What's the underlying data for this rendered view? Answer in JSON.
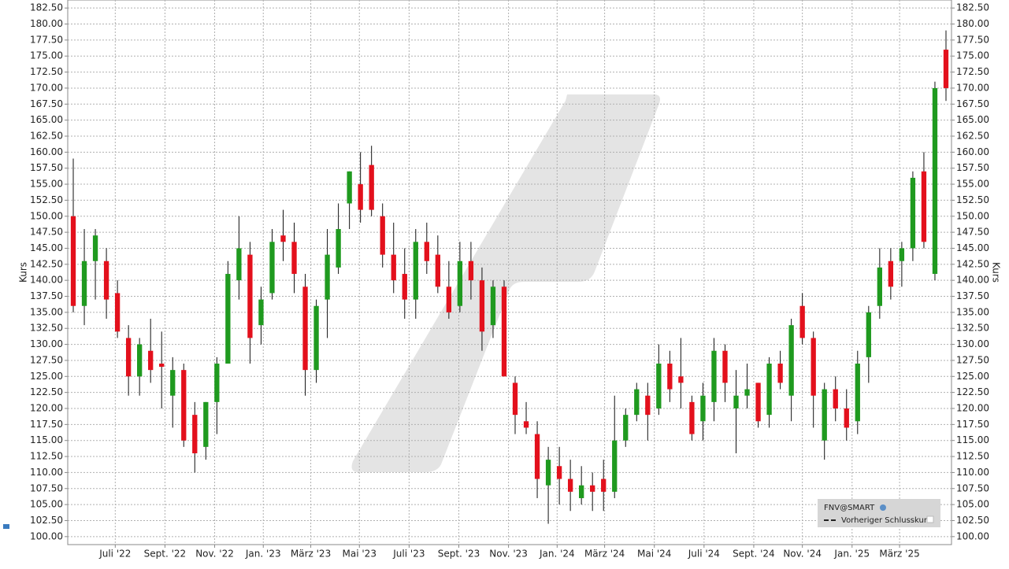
{
  "chart_data": {
    "type": "candlestick",
    "y_label": "Kurs",
    "legend": {
      "title": "FNV@SMART",
      "entry": "Vorheriger Schlusskurs"
    },
    "up_color": "#1f9a1f",
    "down_color": "#e3101c",
    "grid": true,
    "xlim": [
      -0.5,
      79.5
    ],
    "xticks": [
      {
        "value": 3.8,
        "label": "Juli '22"
      },
      {
        "value": 8.3,
        "label": "Sept. '22"
      },
      {
        "value": 12.8,
        "label": "Nov. '22"
      },
      {
        "value": 17.2,
        "label": "Jan. '23"
      },
      {
        "value": 21.5,
        "label": "März '23"
      },
      {
        "value": 25.9,
        "label": "Mai '23"
      },
      {
        "value": 30.4,
        "label": "Juli '23"
      },
      {
        "value": 34.9,
        "label": "Sept. '23"
      },
      {
        "value": 39.4,
        "label": "Nov. '23"
      },
      {
        "value": 43.8,
        "label": "Jan. '24"
      },
      {
        "value": 48.1,
        "label": "März '24"
      },
      {
        "value": 52.6,
        "label": "Mai '24"
      },
      {
        "value": 57.1,
        "label": "Juli '24"
      },
      {
        "value": 61.6,
        "label": "Sept. '24"
      },
      {
        "value": 66.0,
        "label": "Nov. '24"
      },
      {
        "value": 70.5,
        "label": "Jan. '25"
      },
      {
        "value": 74.8,
        "label": "März '25"
      }
    ],
    "ylim": [
      98.75,
      183.75
    ],
    "yticks": [
      {
        "value": 100,
        "label": "100.00"
      },
      {
        "value": 102.5,
        "label": "102.50"
      },
      {
        "value": 105,
        "label": "105.00"
      },
      {
        "value": 107.5,
        "label": "107.50"
      },
      {
        "value": 110,
        "label": "110.00"
      },
      {
        "value": 112.5,
        "label": "112.50"
      },
      {
        "value": 115,
        "label": "115.00"
      },
      {
        "value": 117.5,
        "label": "117.50"
      },
      {
        "value": 120,
        "label": "120.00"
      },
      {
        "value": 122.5,
        "label": "122.50"
      },
      {
        "value": 125,
        "label": "125.00"
      },
      {
        "value": 127.5,
        "label": "127.50"
      },
      {
        "value": 130,
        "label": "130.00"
      },
      {
        "value": 132.5,
        "label": "132.50"
      },
      {
        "value": 135,
        "label": "135.00"
      },
      {
        "value": 137.5,
        "label": "137.50"
      },
      {
        "value": 140,
        "label": "140.00"
      },
      {
        "value": 142.5,
        "label": "142.50"
      },
      {
        "value": 145,
        "label": "145.00"
      },
      {
        "value": 147.5,
        "label": "147.50"
      },
      {
        "value": 150,
        "label": "150.00"
      },
      {
        "value": 152.5,
        "label": "152.50"
      },
      {
        "value": 155,
        "label": "155.00"
      },
      {
        "value": 157.5,
        "label": "157.50"
      },
      {
        "value": 160,
        "label": "160.00"
      },
      {
        "value": 162.5,
        "label": "162.50"
      },
      {
        "value": 165,
        "label": "165.00"
      },
      {
        "value": 167.5,
        "label": "167.50"
      },
      {
        "value": 170,
        "label": "170.00"
      },
      {
        "value": 172.5,
        "label": "172.50"
      },
      {
        "value": 175,
        "label": "175.00"
      },
      {
        "value": 177.5,
        "label": "177.50"
      },
      {
        "value": 180,
        "label": "180.00"
      },
      {
        "value": 182.5,
        "label": "182.50"
      }
    ],
    "open": [
      150,
      136,
      143,
      143,
      138,
      131,
      125,
      129,
      127,
      122,
      126,
      119,
      114,
      121,
      127,
      140,
      144,
      133,
      138,
      147,
      146,
      139,
      126,
      137,
      142,
      152,
      155,
      158,
      150,
      144,
      141,
      137,
      146,
      144,
      139,
      136,
      143,
      140,
      133,
      139,
      124,
      118,
      116,
      108,
      111,
      109,
      106,
      108,
      109,
      107,
      115,
      119,
      122,
      120,
      127,
      125,
      121,
      118,
      121,
      129,
      120,
      122,
      124,
      119,
      127,
      122,
      136,
      131,
      115,
      123,
      120,
      118,
      128,
      136,
      143,
      143,
      145,
      157,
      141,
      176
    ],
    "high": [
      159,
      148,
      148,
      145,
      140,
      133,
      131,
      134,
      132,
      128,
      127,
      121,
      121,
      128,
      143,
      150,
      146,
      139,
      148,
      151,
      149,
      141,
      137,
      148,
      152,
      157,
      160,
      161,
      152,
      149,
      145,
      148,
      149,
      147,
      143,
      146,
      146,
      142,
      140,
      140,
      125,
      121,
      118,
      114,
      114,
      112,
      111,
      110,
      112,
      122,
      120,
      124,
      124,
      130,
      129,
      131,
      122,
      124,
      131,
      130,
      126,
      127,
      124,
      128,
      129,
      134,
      138,
      132,
      124,
      125,
      123,
      129,
      136,
      145,
      145,
      146,
      157,
      160,
      171,
      179
    ],
    "low": [
      135,
      133,
      137,
      134,
      131,
      122,
      122,
      124,
      120,
      117,
      114,
      110,
      112,
      116,
      127,
      137,
      127,
      130,
      137,
      143,
      138,
      122,
      124,
      131,
      141,
      148,
      149,
      150,
      142,
      138,
      134,
      134,
      141,
      138,
      134,
      135,
      137,
      129,
      131,
      125,
      116,
      116,
      106,
      102,
      105,
      104,
      105,
      104,
      104,
      106,
      114,
      118,
      115,
      119,
      121,
      120,
      115,
      115,
      118,
      121,
      113,
      120,
      117,
      117,
      123,
      118,
      130,
      117,
      112,
      118,
      115,
      116,
      124,
      134,
      137,
      139,
      143,
      145,
      140,
      168
    ],
    "close": [
      136,
      143,
      147,
      137,
      132,
      125,
      130,
      126,
      126.5,
      126,
      115,
      113,
      121,
      127,
      141,
      145,
      131,
      137,
      146,
      146,
      141,
      126,
      136,
      144,
      148,
      157,
      151,
      151,
      144,
      140,
      137,
      146,
      143,
      139,
      135,
      143,
      140,
      132,
      139,
      125,
      119,
      117,
      109,
      112,
      109,
      107,
      108,
      107,
      107,
      115,
      119,
      123,
      119,
      127,
      123,
      124,
      116,
      122,
      129,
      124,
      122,
      123,
      118,
      127,
      124,
      133,
      131,
      122,
      123,
      120,
      117,
      127,
      135,
      142,
      139,
      145,
      156,
      146,
      170,
      170
    ]
  }
}
